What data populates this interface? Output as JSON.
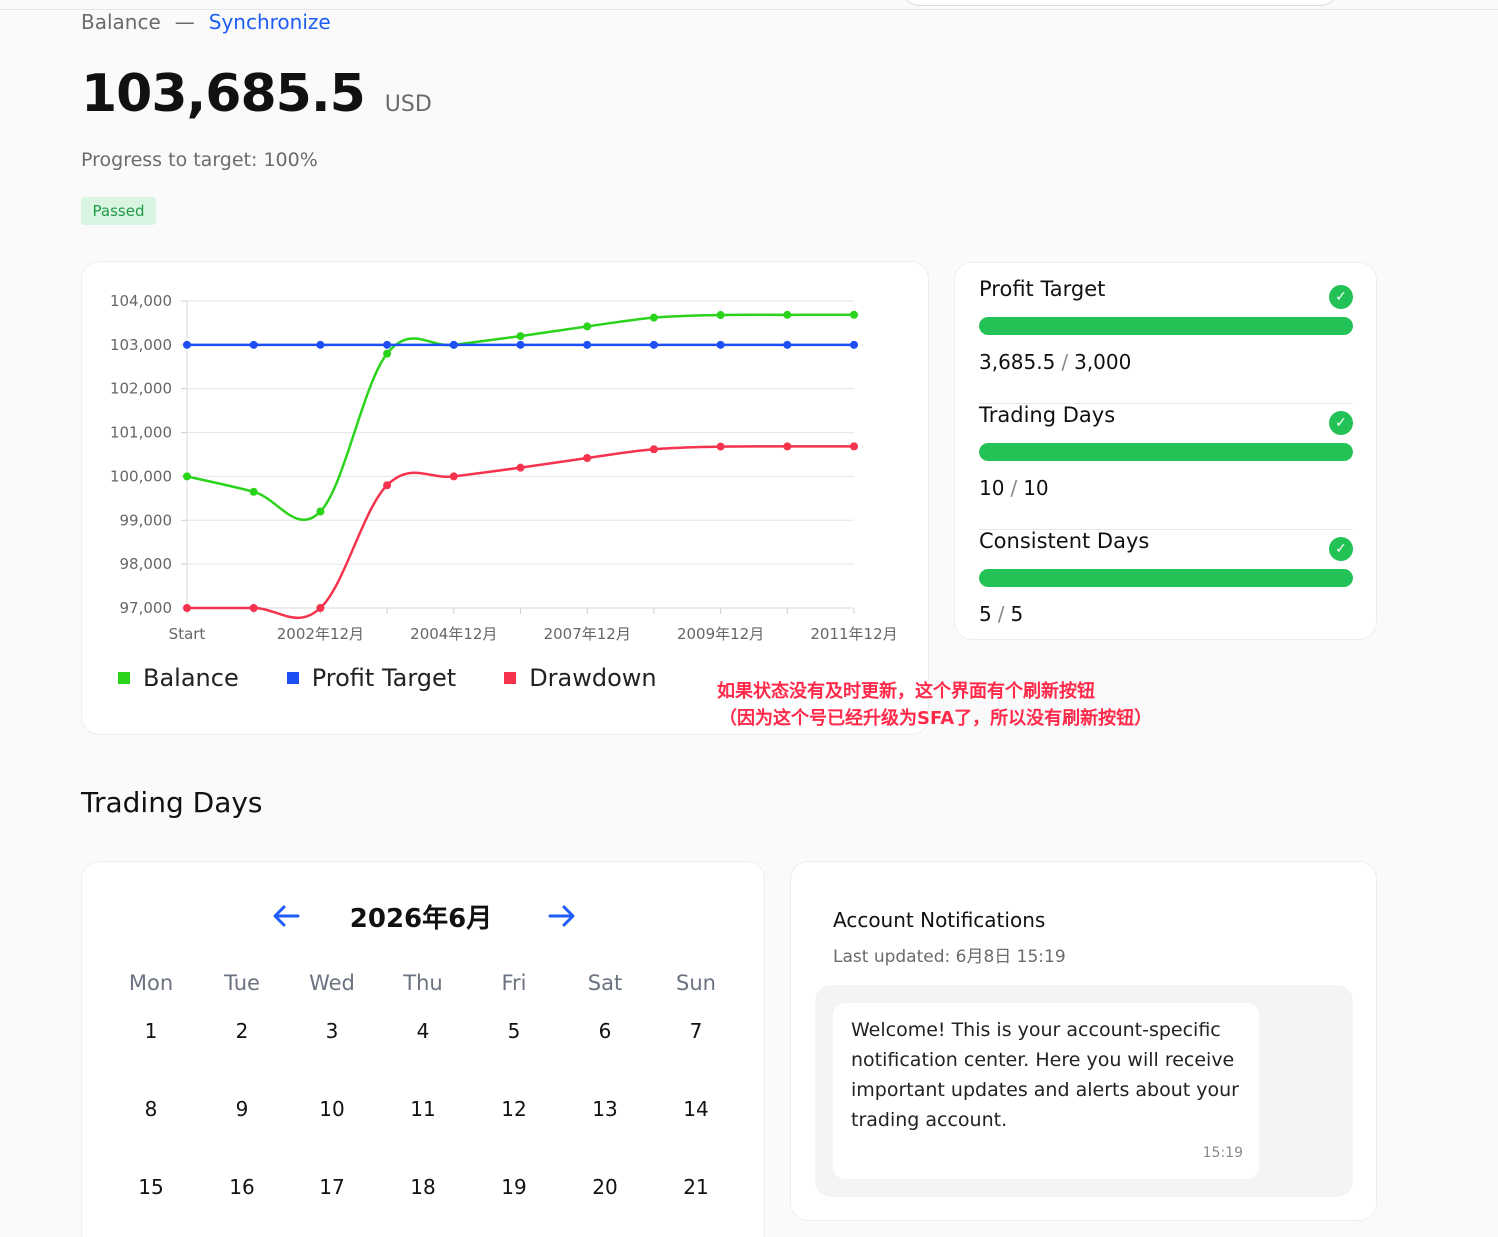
{
  "header": {
    "balance_label": "Balance",
    "separator": "—",
    "sync_link": "Synchronize"
  },
  "account": {
    "balance": "103,685.5",
    "currency": "USD",
    "progress_text": "Progress to target: 100%",
    "status": "Passed"
  },
  "chart_data": {
    "type": "line",
    "categories": [
      "Start",
      "",
      "2002年12月",
      "",
      "2004年12月",
      "",
      "2007年12月",
      "",
      "2009年12月",
      "",
      "2011年12月"
    ],
    "x_tick_labels": [
      "Start",
      "2002年12月",
      "2004年12月",
      "2007年12月",
      "2009年12月",
      "2011年12月"
    ],
    "ylim": [
      97000,
      104000
    ],
    "y_tick_labels": [
      "104,000",
      "103,000",
      "102,000",
      "101,000",
      "100,000",
      "99,000",
      "98,000",
      "97,000"
    ],
    "y_ticks": [
      104000,
      103000,
      102000,
      101000,
      100000,
      99000,
      98000,
      97000
    ],
    "grid": true,
    "legend_position": "bottom-left",
    "series": [
      {
        "name": "Balance",
        "color": "#2ad41b",
        "values": [
          100000,
          99650,
          99200,
          102800,
          103000,
          103200,
          103420,
          103620,
          103680,
          103685,
          103685.5
        ]
      },
      {
        "name": "Profit Target",
        "color": "#1d4ff5",
        "values": [
          103000,
          103000,
          103000,
          103000,
          103000,
          103000,
          103000,
          103000,
          103000,
          103000,
          103000
        ]
      },
      {
        "name": "Drawdown",
        "color": "#f5334d",
        "values": [
          97000,
          97000,
          97000,
          99800,
          100000,
          100200,
          100420,
          100620,
          100680,
          100685,
          100685.5
        ]
      }
    ]
  },
  "objectives": [
    {
      "title": "Profit Target",
      "current": "3,685.5",
      "target": "3,000",
      "progress": 1.0
    },
    {
      "title": "Trading Days",
      "current": "10",
      "target": "10",
      "progress": 1.0
    },
    {
      "title": "Consistent Days",
      "current": "5",
      "target": "5",
      "progress": 1.0
    }
  ],
  "objective_separator": "/",
  "check_icon": "check-circle-icon",
  "annotation": {
    "line1": "如果状态没有及时更新，这个界面有个刷新按钮",
    "line2": "（因为这个号已经升级为SFA了，所以没有刷新按钮）"
  },
  "trading_days": {
    "section_title": "Trading Days",
    "month_label": "2026年6月",
    "prev_icon": "arrow-left-icon",
    "next_icon": "arrow-right-icon",
    "weekdays": [
      "Mon",
      "Tue",
      "Wed",
      "Thu",
      "Fri",
      "Sat",
      "Sun"
    ],
    "weeks": [
      [
        "1",
        "2",
        "3",
        "4",
        "5",
        "6",
        "7"
      ],
      [
        "8",
        "9",
        "10",
        "11",
        "12",
        "13",
        "14"
      ],
      [
        "15",
        "16",
        "17",
        "18",
        "19",
        "20",
        "21"
      ]
    ]
  },
  "notifications": {
    "title": "Account Notifications",
    "last_updated": "Last updated: 6月8日 15:19",
    "messages": [
      {
        "text": "Welcome! This is your account-specific notification center. Here you will receive important updates and alerts about your trading account.",
        "time": "15:19"
      }
    ]
  },
  "colors": {
    "accent": "#1d5cf5",
    "success": "#23c257",
    "annotation": "#ff2a4a"
  }
}
